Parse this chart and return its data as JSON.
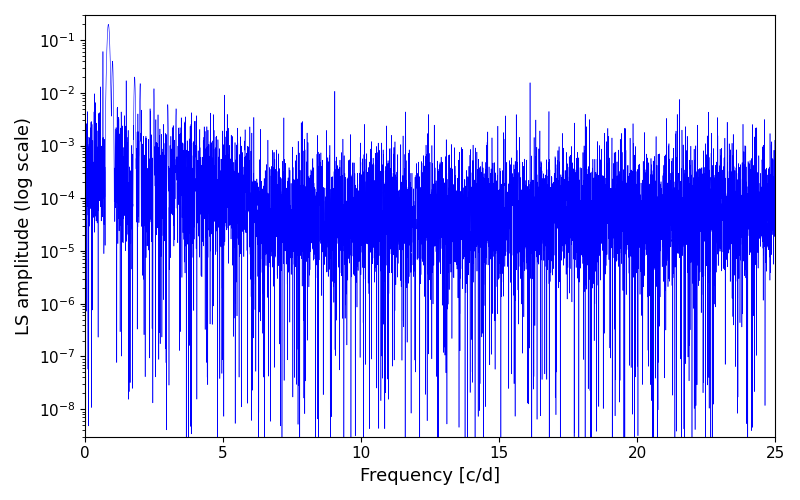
{
  "xlabel": "Frequency [c/d]",
  "ylabel": "LS amplitude (log scale)",
  "xlim": [
    0,
    25
  ],
  "ylim": [
    3e-09,
    0.3
  ],
  "line_color": "#0000ff",
  "background_color": "#ffffff",
  "xlabel_fontsize": 13,
  "ylabel_fontsize": 13,
  "tick_fontsize": 11,
  "seed": 42,
  "n_points": 8000
}
